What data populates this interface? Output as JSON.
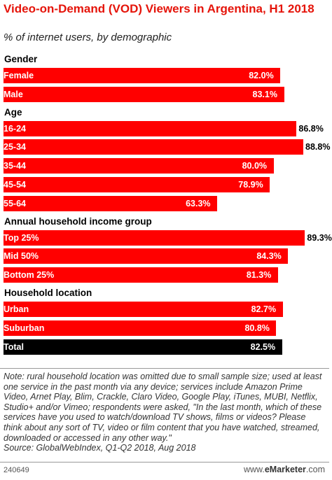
{
  "chart_data": {
    "type": "bar",
    "orientation": "horizontal",
    "title": "Video-on-Demand (VOD) Viewers in Argentina, H1 2018",
    "subtitle": "% of internet users, by demographic",
    "xlim": [
      0,
      100
    ],
    "groups": [
      {
        "label": "Gender",
        "rows": [
          {
            "label": "Female",
            "value": 82.0,
            "display": "82.0%"
          },
          {
            "label": "Male",
            "value": 83.1,
            "display": "83.1%"
          }
        ]
      },
      {
        "label": "Age",
        "rows": [
          {
            "label": "16-24",
            "value": 86.8,
            "display": "86.8%"
          },
          {
            "label": "25-34",
            "value": 88.8,
            "display": "88.8%"
          },
          {
            "label": "35-44",
            "value": 80.0,
            "display": "80.0%"
          },
          {
            "label": "45-54",
            "value": 78.9,
            "display": "78.9%"
          },
          {
            "label": "55-64",
            "value": 63.3,
            "display": "63.3%"
          }
        ]
      },
      {
        "label": "Annual household income group",
        "rows": [
          {
            "label": "Top 25%",
            "value": 89.3,
            "display": "89.3%"
          },
          {
            "label": "Mid 50%",
            "value": 84.3,
            "display": "84.3%"
          },
          {
            "label": "Bottom 25%",
            "value": 81.3,
            "display": "81.3%"
          }
        ]
      },
      {
        "label": "Household location",
        "rows": [
          {
            "label": "Urban",
            "value": 82.7,
            "display": "82.7%"
          },
          {
            "label": "Suburban",
            "value": 80.8,
            "display": "80.8%"
          }
        ]
      }
    ],
    "total": {
      "label": "Total",
      "value": 82.5,
      "display": "82.5%"
    },
    "colors": {
      "bar": "#ff0000",
      "total": "#000000",
      "title": "#e5140a"
    }
  },
  "note": "Note: rural household location was omitted due to small sample size; used at least one service in the past month via any device; services include Amazon Prime Video, Arnet Play, Blim, Crackle, Claro Video, Google Play, iTunes, MUBI, Netflix, Studio+ and/or Vimeo; respondents were asked, \"In the last month, which of these services have you used to watch/download TV shows, films or videos? Please think about any sort of TV, video or film content that you have watched, streamed, downloaded or accessed in any other way.\"",
  "source": "Source: GlobalWebIndex, Q1-Q2 2018, Aug 2018",
  "footer": {
    "chart_id": "240649",
    "brand_prefix": "www.",
    "brand_name": "eMarketer",
    "brand_suffix": ".com"
  }
}
